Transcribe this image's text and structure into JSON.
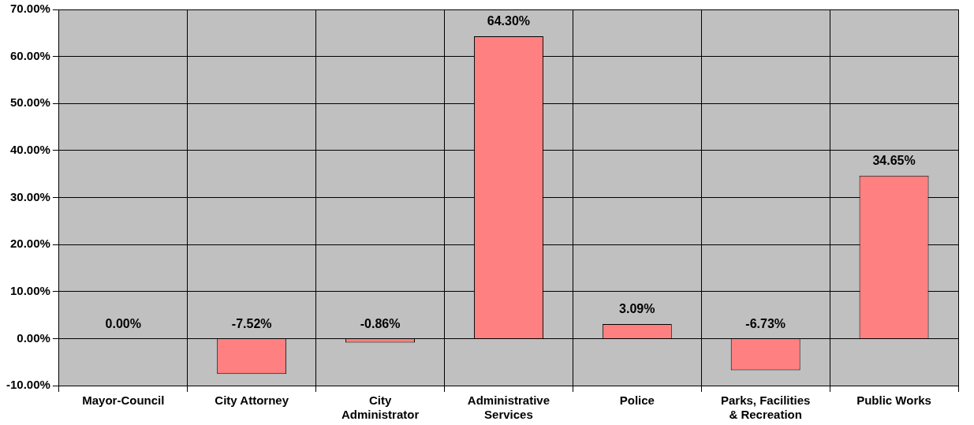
{
  "chart_data": {
    "type": "bar",
    "categories": [
      "Mayor-Council",
      "City Attorney",
      "City Administrator",
      "Administrative Services",
      "Police",
      "Parks, Facilities & Recreation",
      "Public Works"
    ],
    "values": [
      0,
      -7.52,
      -0.86,
      64.3,
      3.09,
      -6.73,
      34.65
    ],
    "value_labels": [
      "0.00%",
      "-7.52%",
      "-0.86%",
      "64.30%",
      "3.09%",
      "-6.73%",
      "34.65%"
    ],
    "color": "#ff8080",
    "ylim": [
      -10,
      70
    ],
    "yticks": [
      {
        "value": -10,
        "label": "-10.00%"
      },
      {
        "value": 0,
        "label": "0.00%"
      },
      {
        "value": 10,
        "label": "10.00%"
      },
      {
        "value": 20,
        "label": "20.00%"
      },
      {
        "value": 30,
        "label": "30.00%"
      },
      {
        "value": 40,
        "label": "40.00%"
      },
      {
        "value": 50,
        "label": "50.00%"
      },
      {
        "value": 60,
        "label": "60.00%"
      },
      {
        "value": 70,
        "label": "70.00%"
      }
    ],
    "grid": true,
    "legend": false
  }
}
